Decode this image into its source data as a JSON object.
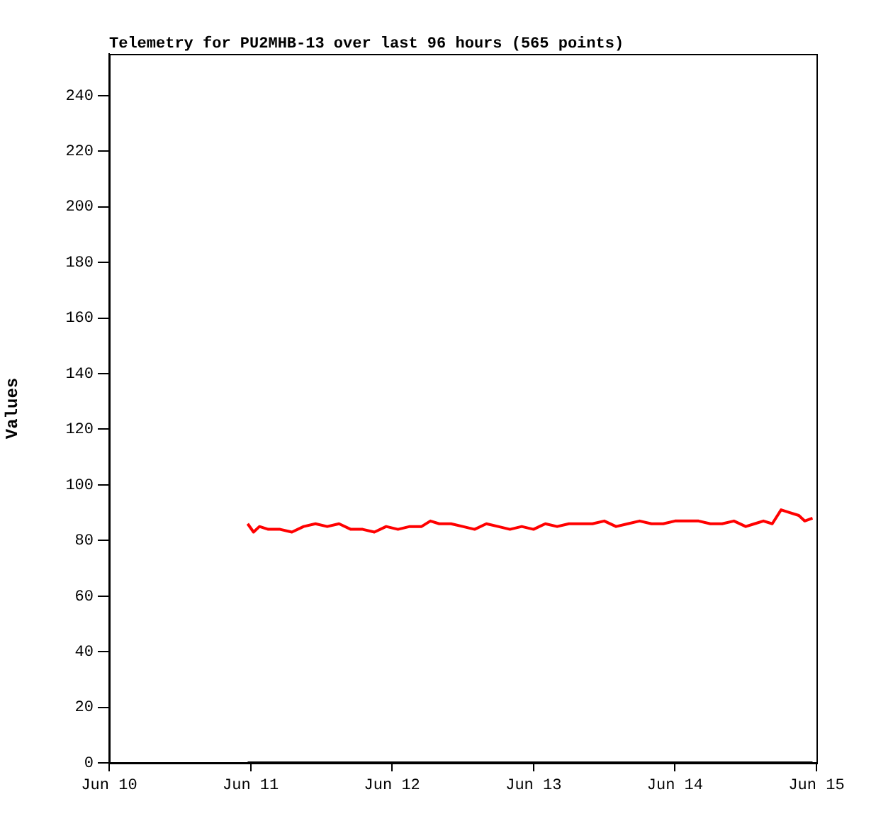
{
  "chart_data": {
    "type": "line",
    "title": "Telemetry for PU2MHB-13 over last 96 hours (565 points)",
    "ylabel": "Values",
    "xlim": [
      "--06-10",
      "--06-15"
    ],
    "xticks": [
      {
        "value": "--06-10",
        "label": "Jun 10"
      },
      {
        "value": "--06-11",
        "label": "Jun 11"
      },
      {
        "value": "--06-12",
        "label": "Jun 12"
      },
      {
        "value": "--06-13",
        "label": "Jun 13"
      },
      {
        "value": "--06-14",
        "label": "Jun 14"
      },
      {
        "value": "--06-15",
        "label": "Jun 15"
      }
    ],
    "ylim": [
      0,
      255
    ],
    "yticks": [
      0,
      20,
      40,
      60,
      80,
      100,
      120,
      140,
      160,
      180,
      200,
      220,
      240
    ],
    "grid": false,
    "legend": false,
    "marker": "none",
    "line_style": "solid",
    "series": [
      {
        "color": "#ff0000",
        "x": [
          "--06-10T23:30",
          "--06-11T00:30",
          "--06-11T01:30",
          "--06-11T03:00",
          "--06-11T05:00",
          "--06-11T07:00",
          "--06-11T09:00",
          "--06-11T11:00",
          "--06-11T13:00",
          "--06-11T15:00",
          "--06-11T17:00",
          "--06-11T19:00",
          "--06-11T21:00",
          "--06-11T23:00",
          "--06-12T01:00",
          "--06-12T03:00",
          "--06-12T05:00",
          "--06-12T06:30",
          "--06-12T08:00",
          "--06-12T10:00",
          "--06-12T12:00",
          "--06-12T14:00",
          "--06-12T16:00",
          "--06-12T18:00",
          "--06-12T20:00",
          "--06-12T22:00",
          "--06-13T00:00",
          "--06-13T02:00",
          "--06-13T04:00",
          "--06-13T06:00",
          "--06-13T08:00",
          "--06-13T10:00",
          "--06-13T12:00",
          "--06-13T14:00",
          "--06-13T16:00",
          "--06-13T18:00",
          "--06-13T20:00",
          "--06-13T22:00",
          "--06-14T00:00",
          "--06-14T02:00",
          "--06-14T04:00",
          "--06-14T06:00",
          "--06-14T08:00",
          "--06-14T10:00",
          "--06-14T12:00",
          "--06-14T13:30",
          "--06-14T15:00",
          "--06-14T16:30",
          "--06-14T18:00",
          "--06-14T19:30",
          "--06-14T21:00",
          "--06-14T22:00",
          "--06-14T23:20"
        ],
        "values": [
          86,
          83,
          85,
          84,
          84,
          83,
          85,
          86,
          85,
          86,
          84,
          84,
          83,
          85,
          84,
          85,
          85,
          87,
          86,
          86,
          85,
          84,
          86,
          85,
          84,
          85,
          84,
          86,
          85,
          86,
          86,
          86,
          87,
          85,
          86,
          87,
          86,
          86,
          87,
          87,
          87,
          86,
          86,
          87,
          85,
          86,
          87,
          86,
          91,
          90,
          89,
          87,
          88
        ]
      },
      {
        "color": "#000000",
        "x": [
          "--06-10T23:30",
          "--06-14T23:20"
        ],
        "values": [
          0,
          0
        ]
      }
    ]
  }
}
